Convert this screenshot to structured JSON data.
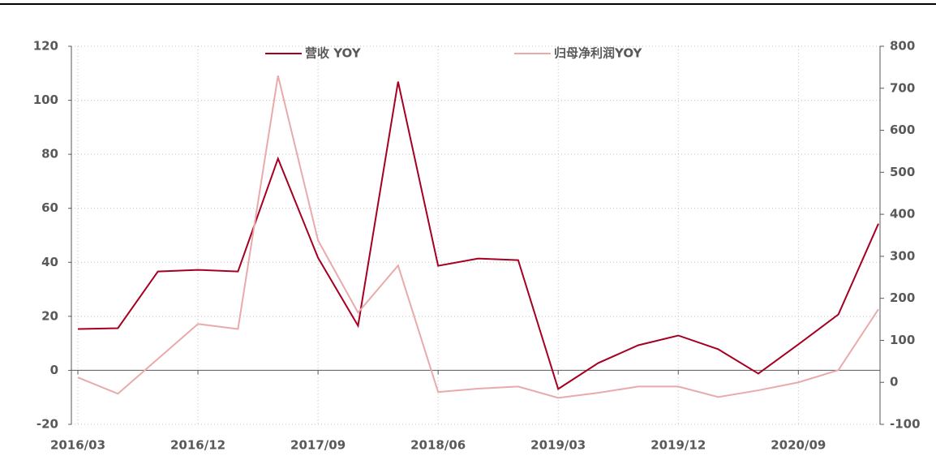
{
  "chart_data": {
    "type": "line",
    "categories": [
      "2016/03",
      null,
      null,
      "2016/12",
      null,
      null,
      "2017/09",
      null,
      null,
      "2018/06",
      null,
      null,
      "2019/03",
      null,
      null,
      "2019/12",
      null,
      null,
      "2020/09",
      null,
      null
    ],
    "series": [
      {
        "name": "营收 YOY",
        "color": "#a50021",
        "values": [
          15.3,
          15.6,
          36.6,
          37.2,
          36.6,
          78.4,
          41.7,
          16.5,
          106.9,
          38.7,
          41.4,
          40.8,
          -6.9,
          2.7,
          9.3,
          12.9,
          7.8,
          -1.2,
          9.6,
          20.7,
          54.3
        ]
      },
      {
        "name": "归母净利润YOY",
        "color": "#e8aaaa",
        "axis": "y2",
        "values": [
          11.6,
          -27,
          56,
          139,
          127,
          730,
          338,
          166,
          278,
          -23,
          -15,
          -10,
          -37,
          -25,
          -10,
          -10,
          -35,
          -19,
          0,
          29,
          174
        ]
      }
    ],
    "ylim": [
      -20,
      120
    ],
    "yticks": [
      -20,
      0,
      20,
      40,
      60,
      80,
      100,
      120
    ],
    "y2lim": [
      -100,
      800
    ],
    "y2ticks": [
      -100,
      0,
      100,
      200,
      300,
      400,
      500,
      600,
      700,
      800
    ],
    "grid": true
  }
}
